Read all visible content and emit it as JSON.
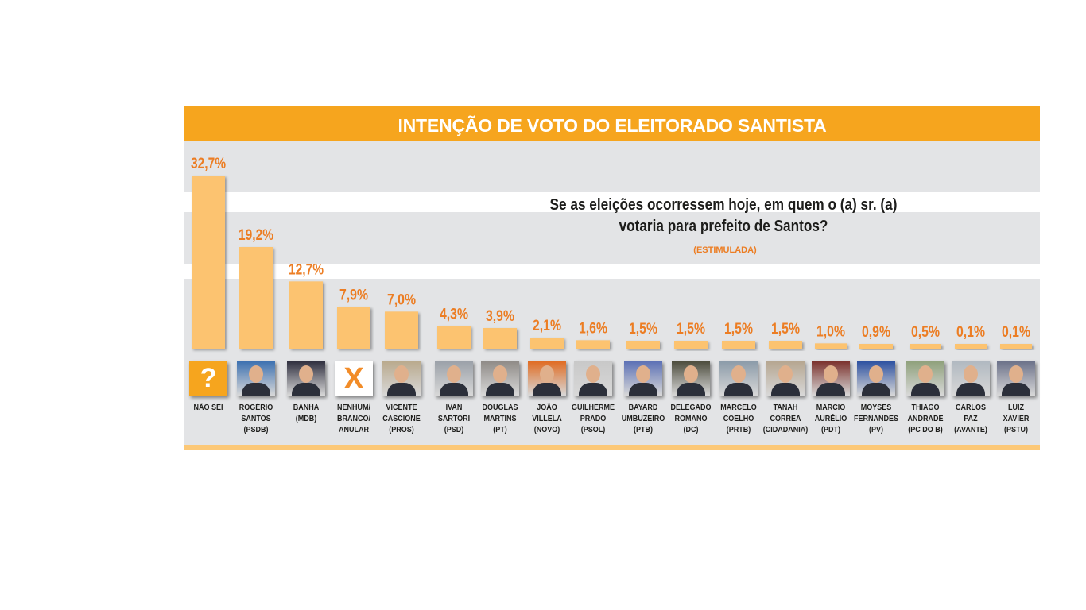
{
  "title": "INTENÇÃO DE VOTO DO ELEITORADO SANTISTA",
  "question": "Se as eleições ocorressem hoje, em quem o (a) sr. (a) votaria para prefeito de Santos?",
  "note": "(ESTIMULADA)",
  "colors": {
    "bar": "#fcc36f",
    "accent": "#f6a51e",
    "value_text": "#ec7d23",
    "panel": "#e3e4e6"
  },
  "chart_data": {
    "type": "bar",
    "title": "INTENÇÃO DE VOTO DO ELEITORADO SANTISTA",
    "ylim": [
      0,
      35
    ],
    "categories": [
      "NÃO SEI",
      "ROGÉRIO SANTOS (PSDB)",
      "BANHA (MDB)",
      "NENHUM/ BRANCO/ ANULAR",
      "VICENTE CASCIONE (PROS)",
      "IVAN SARTORI (PSD)",
      "DOUGLAS MARTINS (PT)",
      "JOÃO VILLELA (NOVO)",
      "GUILHERME PRADO (PSOL)",
      "BAYARD UMBUZEIRO (PTB)",
      "DELEGADO ROMANO (DC)",
      "MARCELO COELHO (PRTB)",
      "TANAH CORREA (CIDADANIA)",
      "MARCIO AURÉLIO (PDT)",
      "MOYSES FERNANDES (PV)",
      "THIAGO ANDRADE (PC DO B)",
      "CARLOS PAZ (AVANTE)",
      "LUIZ XAVIER (PSTU)"
    ],
    "values": [
      32.7,
      19.2,
      12.7,
      7.9,
      7.0,
      4.3,
      3.9,
      2.1,
      1.6,
      1.5,
      1.5,
      1.5,
      1.5,
      1.0,
      0.9,
      0.5,
      0.1,
      0.1
    ],
    "value_labels": [
      "32,7%",
      "19,2%",
      "12,7%",
      "7,9%",
      "7,0%",
      "4,3%",
      "3,9%",
      "2,1%",
      "1,6%",
      "1,5%",
      "1,5%",
      "1,5%",
      "1,5%",
      "1,0%",
      "0,9%",
      "0,5%",
      "0,1%",
      "0,1%"
    ]
  },
  "candidates": [
    {
      "lines": [
        "NÃO SEI"
      ],
      "icon": "question-mark-icon",
      "symbol": "?"
    },
    {
      "lines": [
        "ROGÉRIO",
        "SANTOS",
        "(PSDB)"
      ],
      "icon": "candidate-photo"
    },
    {
      "lines": [
        "BANHA",
        "(MDB)"
      ],
      "icon": "candidate-photo"
    },
    {
      "lines": [
        "NENHUM/",
        "BRANCO/",
        "ANULAR"
      ],
      "icon": "x-mark-icon",
      "symbol": "X"
    },
    {
      "lines": [
        "VICENTE",
        "CASCIONE",
        "(PROS)"
      ],
      "icon": "candidate-photo"
    },
    {
      "lines": [
        "IVAN",
        "SARTORI",
        "(PSD)"
      ],
      "icon": "candidate-photo"
    },
    {
      "lines": [
        "DOUGLAS",
        "MARTINS",
        "(PT)"
      ],
      "icon": "candidate-photo"
    },
    {
      "lines": [
        "JOÃO",
        "VILLELA",
        "(NOVO)"
      ],
      "icon": "candidate-photo"
    },
    {
      "lines": [
        "GUILHERME",
        "PRADO",
        "(PSOL)"
      ],
      "icon": "candidate-photo"
    },
    {
      "lines": [
        "BAYARD",
        "UMBUZEIRO",
        "(PTB)"
      ],
      "icon": "candidate-photo"
    },
    {
      "lines": [
        "DELEGADO",
        "ROMANO",
        "(DC)"
      ],
      "icon": "candidate-photo"
    },
    {
      "lines": [
        "MARCELO",
        "COELHO",
        "(PRTB)"
      ],
      "icon": "candidate-photo"
    },
    {
      "lines": [
        "TANAH",
        "CORREA",
        "(CIDADANIA)"
      ],
      "icon": "candidate-photo"
    },
    {
      "lines": [
        "MARCIO",
        "AURÉLIO",
        "(PDT)"
      ],
      "icon": "candidate-photo"
    },
    {
      "lines": [
        "MOYSES",
        "FERNANDES",
        "(PV)"
      ],
      "icon": "candidate-photo"
    },
    {
      "lines": [
        "THIAGO",
        "ANDRADE",
        "(PC DO B)"
      ],
      "icon": "candidate-photo"
    },
    {
      "lines": [
        "CARLOS",
        "PAZ",
        "(AVANTE)"
      ],
      "icon": "candidate-photo"
    },
    {
      "lines": [
        "LUIZ",
        "XAVIER",
        "(PSTU)"
      ],
      "icon": "candidate-photo"
    }
  ]
}
